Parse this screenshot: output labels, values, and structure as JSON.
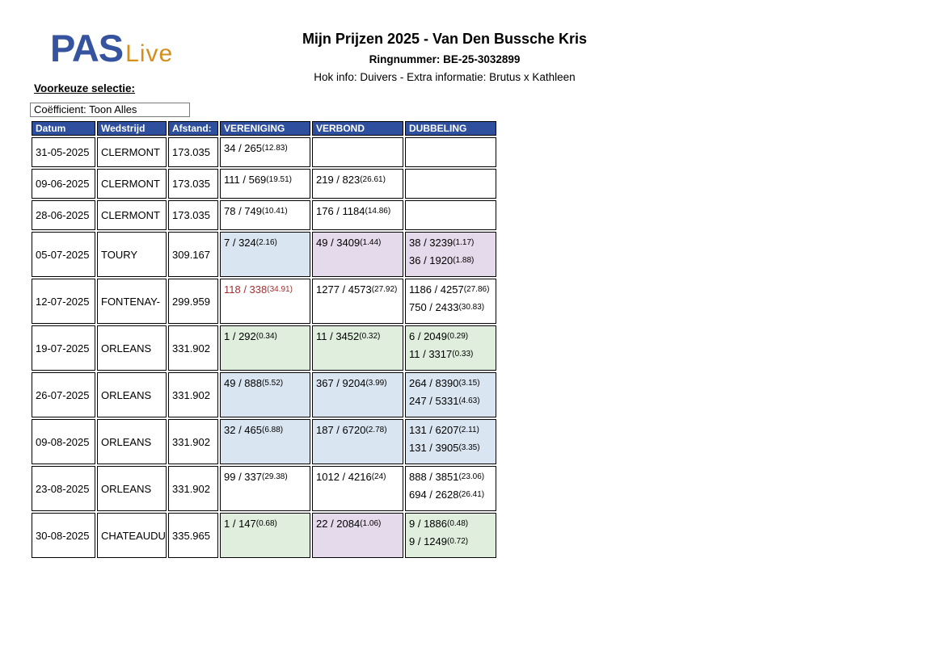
{
  "colors": {
    "header_bg": "#2d4f9e",
    "cell_blue": "#d9e5f1",
    "cell_purple": "#e5daeb",
    "cell_green": "#dfeedd",
    "highlight_red": "#a33030",
    "logo_blue": "#35539e",
    "logo_gold": "#d28f1e"
  },
  "logo": {
    "pas": "PAS",
    "live": "Live"
  },
  "header": {
    "title": "Mijn Prijzen 2025 - Van Den Bussche Kris",
    "ring": "Ringnummer: BE-25-3032899",
    "hok": "Hok info: Duivers - Extra informatie: Brutus x Kathleen"
  },
  "filter": {
    "label": "Voorkeuze selectie:",
    "value": "Coëfficient: Toon Alles"
  },
  "table": {
    "columns": [
      "Datum",
      "Wedstrijd",
      "Afstand:",
      "VERENIGING",
      "VERBOND",
      "DUBBELING"
    ],
    "rows": [
      {
        "date": "31-05-2025",
        "race": "CLERMONT",
        "dist": "173.035",
        "cells": [
          {
            "bg": "white",
            "lines": [
              {
                "rank": "34 / 265",
                "coef": "(12.83)"
              }
            ]
          },
          {
            "bg": "white",
            "lines": []
          },
          {
            "bg": "white",
            "lines": []
          }
        ]
      },
      {
        "date": "09-06-2025",
        "race": "CLERMONT",
        "dist": "173.035",
        "cells": [
          {
            "bg": "white",
            "lines": [
              {
                "rank": "111 / 569",
                "coef": "(19.51)"
              }
            ]
          },
          {
            "bg": "white",
            "lines": [
              {
                "rank": "219 / 823",
                "coef": "(26.61)"
              }
            ]
          },
          {
            "bg": "white",
            "lines": []
          }
        ]
      },
      {
        "date": "28-06-2025",
        "race": "CLERMONT",
        "dist": "173.035",
        "cells": [
          {
            "bg": "white",
            "lines": [
              {
                "rank": "78 / 749",
                "coef": "(10.41)"
              }
            ]
          },
          {
            "bg": "white",
            "lines": [
              {
                "rank": "176 / 1184",
                "coef": "(14.86)"
              }
            ]
          },
          {
            "bg": "white",
            "lines": []
          }
        ]
      },
      {
        "date": "05-07-2025",
        "race": "TOURY",
        "dist": "309.167",
        "cells": [
          {
            "bg": "blue",
            "lines": [
              {
                "rank": "7 / 324",
                "coef": "(2.16)"
              }
            ]
          },
          {
            "bg": "purple",
            "lines": [
              {
                "rank": "49 / 3409",
                "coef": "(1.44)"
              }
            ]
          },
          {
            "bg": "purple",
            "lines": [
              {
                "rank": "38 / 3239",
                "coef": "(1.17)"
              },
              {
                "rank": "36 / 1920",
                "coef": "(1.88)"
              }
            ]
          }
        ]
      },
      {
        "date": "12-07-2025",
        "race": "FONTENAY-",
        "dist": "299.959",
        "cells": [
          {
            "bg": "white",
            "color": "red",
            "lines": [
              {
                "rank": "118 / 338",
                "coef": "(34.91)"
              }
            ]
          },
          {
            "bg": "white",
            "lines": [
              {
                "rank": "1277 / 4573",
                "coef": "(27.92)"
              }
            ]
          },
          {
            "bg": "white",
            "lines": [
              {
                "rank": "1186 / 4257",
                "coef": "(27.86)"
              },
              {
                "rank": "750 / 2433",
                "coef": "(30.83)"
              }
            ]
          }
        ]
      },
      {
        "date": "19-07-2025",
        "race": "ORLEANS",
        "dist": "331.902",
        "cells": [
          {
            "bg": "green",
            "lines": [
              {
                "rank": "1 / 292",
                "coef": "(0.34)"
              }
            ]
          },
          {
            "bg": "green",
            "lines": [
              {
                "rank": "11 / 3452",
                "coef": "(0.32)"
              }
            ]
          },
          {
            "bg": "green",
            "lines": [
              {
                "rank": "6 / 2049",
                "coef": "(0.29)"
              },
              {
                "rank": "11 / 3317",
                "coef": "(0.33)"
              }
            ]
          }
        ]
      },
      {
        "date": "26-07-2025",
        "race": "ORLEANS",
        "dist": "331.902",
        "cells": [
          {
            "bg": "blue",
            "lines": [
              {
                "rank": "49 / 888",
                "coef": "(5.52)"
              }
            ]
          },
          {
            "bg": "blue",
            "lines": [
              {
                "rank": "367 / 9204",
                "coef": "(3.99)"
              }
            ]
          },
          {
            "bg": "blue",
            "lines": [
              {
                "rank": "264 / 8390",
                "coef": "(3.15)"
              },
              {
                "rank": "247 / 5331",
                "coef": "(4.63)"
              }
            ]
          }
        ]
      },
      {
        "date": "09-08-2025",
        "race": "ORLEANS",
        "dist": "331.902",
        "cells": [
          {
            "bg": "blue",
            "lines": [
              {
                "rank": "32 / 465",
                "coef": "(6.88)"
              }
            ]
          },
          {
            "bg": "blue",
            "lines": [
              {
                "rank": "187 / 6720",
                "coef": "(2.78)"
              }
            ]
          },
          {
            "bg": "blue",
            "lines": [
              {
                "rank": "131 / 6207",
                "coef": "(2.11)"
              },
              {
                "rank": "131 / 3905",
                "coef": "(3.35)"
              }
            ]
          }
        ]
      },
      {
        "date": "23-08-2025",
        "race": "ORLEANS",
        "dist": "331.902",
        "cells": [
          {
            "bg": "white",
            "lines": [
              {
                "rank": "99 / 337",
                "coef": "(29.38)"
              }
            ]
          },
          {
            "bg": "white",
            "lines": [
              {
                "rank": "1012 / 4216",
                "coef": "(24)"
              }
            ]
          },
          {
            "bg": "white",
            "lines": [
              {
                "rank": "888 / 3851",
                "coef": "(23.06)"
              },
              {
                "rank": "694 / 2628",
                "coef": "(26.41)"
              }
            ]
          }
        ]
      },
      {
        "date": "30-08-2025",
        "race": "CHATEAUDU",
        "dist": "335.965",
        "cells": [
          {
            "bg": "green",
            "lines": [
              {
                "rank": "1 / 147",
                "coef": "(0.68)"
              }
            ]
          },
          {
            "bg": "purple",
            "lines": [
              {
                "rank": "22 / 2084",
                "coef": "(1.06)"
              }
            ]
          },
          {
            "bg": "green",
            "lines": [
              {
                "rank": "9 / 1886",
                "coef": "(0.48)"
              },
              {
                "rank": "9 / 1249",
                "coef": "(0.72)"
              }
            ]
          }
        ]
      }
    ]
  }
}
